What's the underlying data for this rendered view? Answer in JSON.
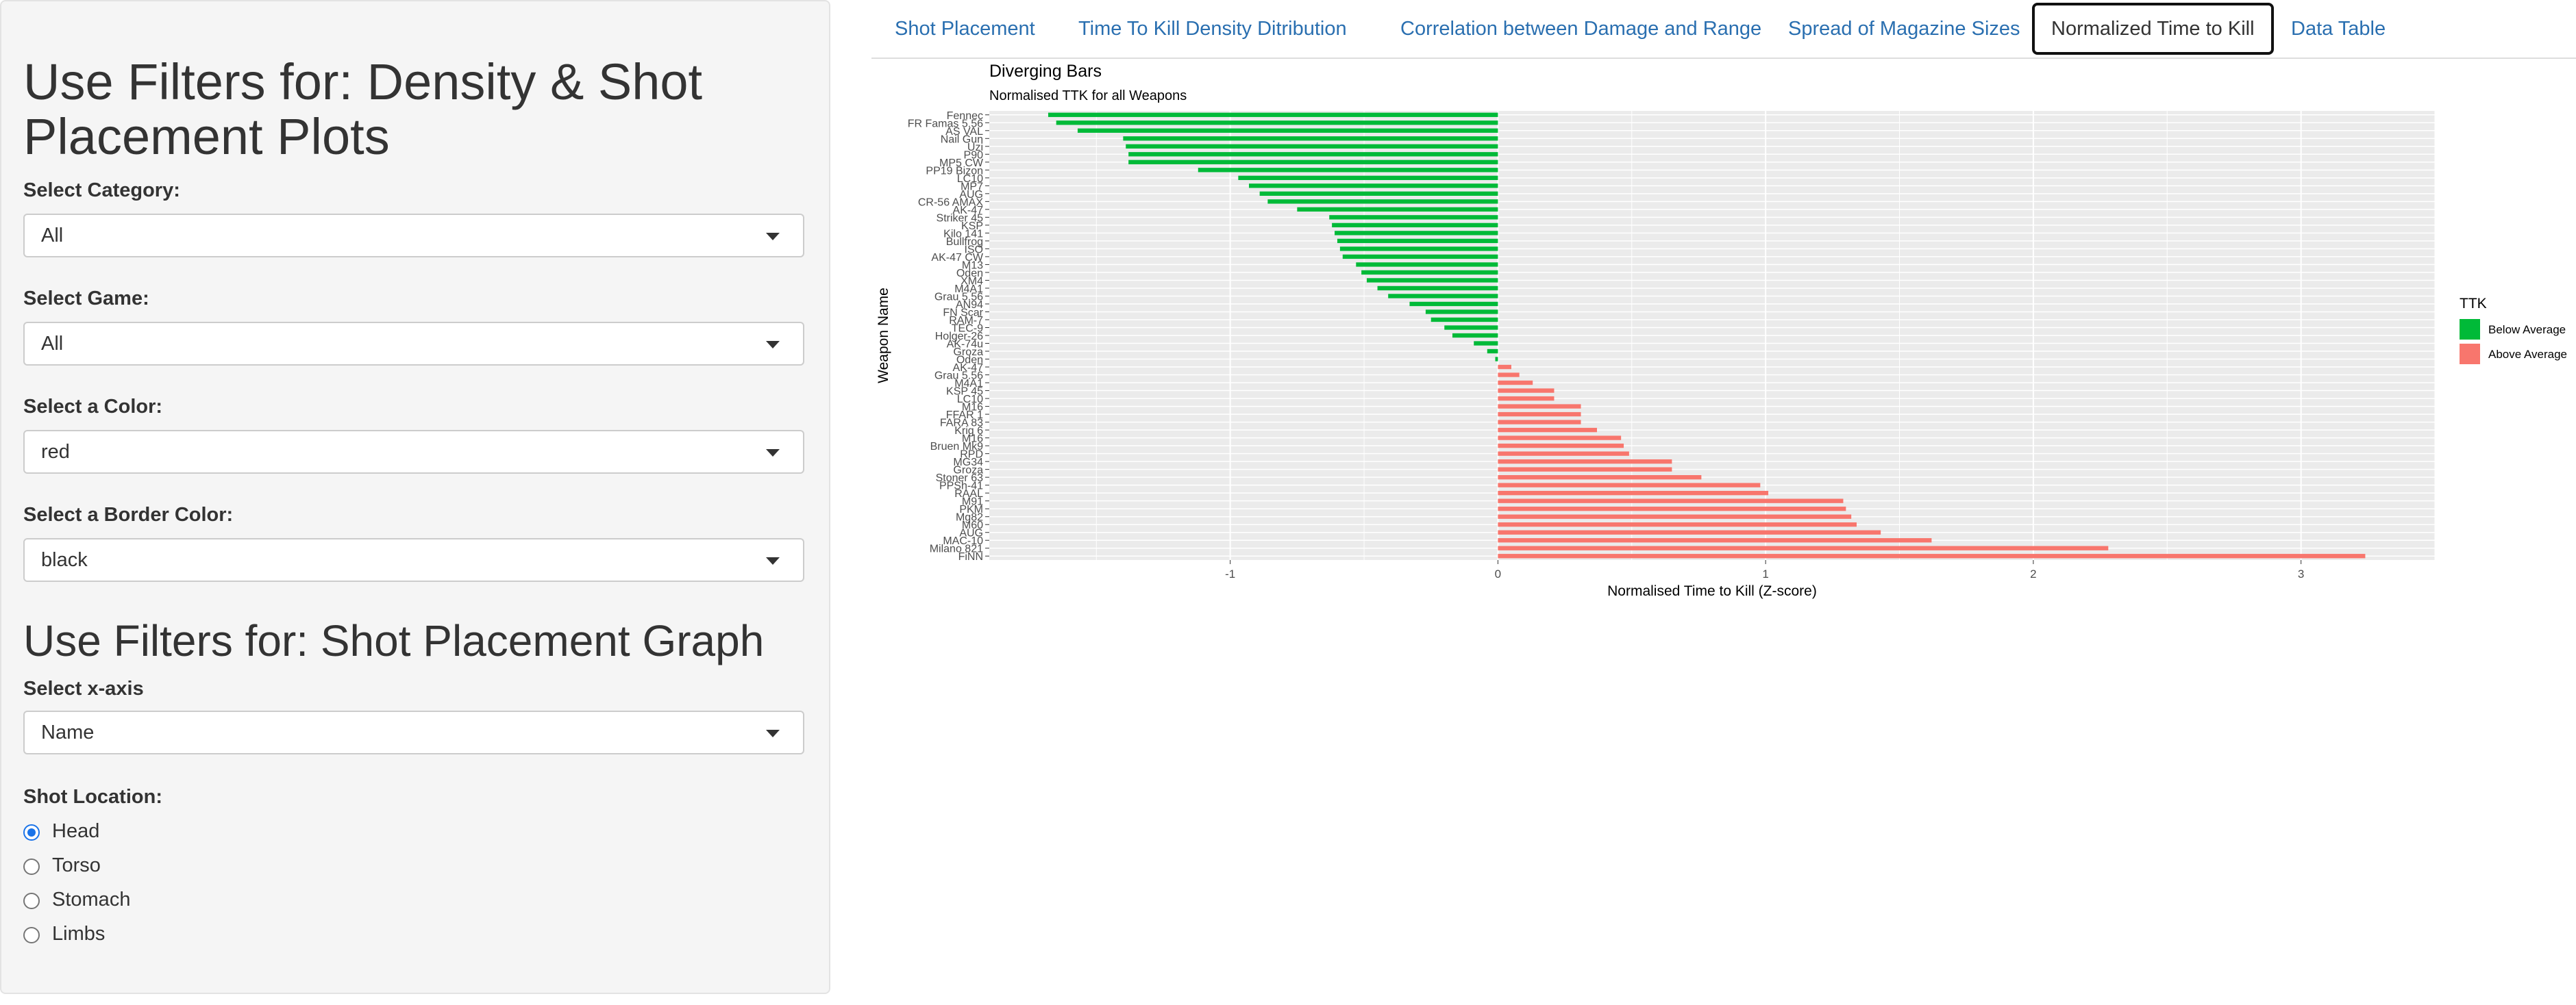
{
  "sidebar": {
    "title1": "Use Filters for: Density & Shot Placement Plots",
    "category": {
      "label": "Select Category:",
      "value": "All"
    },
    "game": {
      "label": "Select Game:",
      "value": "All"
    },
    "color": {
      "label": "Select a Color:",
      "value": "red"
    },
    "border_color": {
      "label": "Select a Border Color:",
      "value": "black"
    },
    "title2": "Use Filters for: Shot Placement Graph",
    "xaxis": {
      "label": "Select x-axis",
      "value": "Name"
    },
    "shot_location": {
      "label": "Shot Location:",
      "options": [
        {
          "label": "Head",
          "checked": true
        },
        {
          "label": "Torso",
          "checked": false
        },
        {
          "label": "Stomach",
          "checked": false
        },
        {
          "label": "Limbs",
          "checked": false
        }
      ]
    }
  },
  "tabs": [
    {
      "label": "Shot Placement",
      "active": false
    },
    {
      "label": "Time To Kill Density Ditribution",
      "active": false
    },
    {
      "label": "Correlation between Damage and Range",
      "active": false
    },
    {
      "label": "Spread of Magazine Sizes",
      "active": false
    },
    {
      "label": "Normalized Time to Kill",
      "active": true
    },
    {
      "label": "Data Table",
      "active": false
    }
  ],
  "colors": {
    "below": "#00ba38",
    "above": "#f8766d",
    "panel": "#ebebeb",
    "tab_link": "#2a6fb0"
  },
  "chart_data": {
    "type": "bar",
    "orientation": "horizontal",
    "title": "Diverging Bars",
    "subtitle": "Normalised TTK for all Weapons",
    "xlabel": "Normalised Time to Kill (Z-score)",
    "ylabel": "Weapon Name",
    "xlim": [
      -1.9,
      3.5
    ],
    "xticks": [
      -1,
      0,
      1,
      2,
      3
    ],
    "grid": true,
    "legend": {
      "title": "TTK",
      "position": "right",
      "entries": [
        {
          "label": "Below Average",
          "color": "#00ba38"
        },
        {
          "label": "Above Average",
          "color": "#f8766d"
        }
      ]
    },
    "categories": [
      "Fennec",
      "FR Famas 5.56",
      "AS VAL",
      "Nail Gun",
      "Uzi",
      "P90",
      "MP5 CW",
      "PP19 Bizon",
      "LC10",
      "MP7",
      "AUG",
      "CR-56 AMAX",
      "AK-47",
      "Striker 45",
      "KSP",
      "Kilo 141",
      "Bullfrog",
      "ISO",
      "AK-47 CW",
      "M13",
      "Oden",
      "XM4",
      "M4A1",
      "Grau 5.56",
      "AN94",
      "FN Scar",
      "RAM-7",
      "TEC-9",
      "Holger-26",
      "AK-74u",
      "Groza",
      "Oden",
      "AK-47",
      "Grau 5.56",
      "M4A1",
      "KSP 45",
      "LC10",
      "M16",
      "FFAR 1",
      "FARA 83",
      "Krig 6",
      "M16",
      "Bruen Mk9",
      "RPD",
      "MG34",
      "Groza",
      "Stoner 63",
      "PPSh-41",
      "RAAL",
      "M91",
      "PKM",
      "Mg82",
      "M60",
      "AUG",
      "MAC-10",
      "Milano 821",
      "FiNN"
    ],
    "values": [
      -1.68,
      -1.65,
      -1.57,
      -1.4,
      -1.39,
      -1.38,
      -1.38,
      -1.12,
      -0.97,
      -0.93,
      -0.89,
      -0.86,
      -0.75,
      -0.63,
      -0.62,
      -0.61,
      -0.6,
      -0.59,
      -0.58,
      -0.53,
      -0.51,
      -0.49,
      -0.45,
      -0.41,
      -0.33,
      -0.27,
      -0.25,
      -0.2,
      -0.17,
      -0.09,
      -0.04,
      -0.01,
      0.05,
      0.08,
      0.13,
      0.21,
      0.21,
      0.31,
      0.31,
      0.31,
      0.37,
      0.46,
      0.47,
      0.49,
      0.65,
      0.65,
      0.76,
      0.98,
      1.01,
      1.29,
      1.3,
      1.32,
      1.34,
      1.43,
      1.62,
      2.28,
      3.24
    ]
  }
}
